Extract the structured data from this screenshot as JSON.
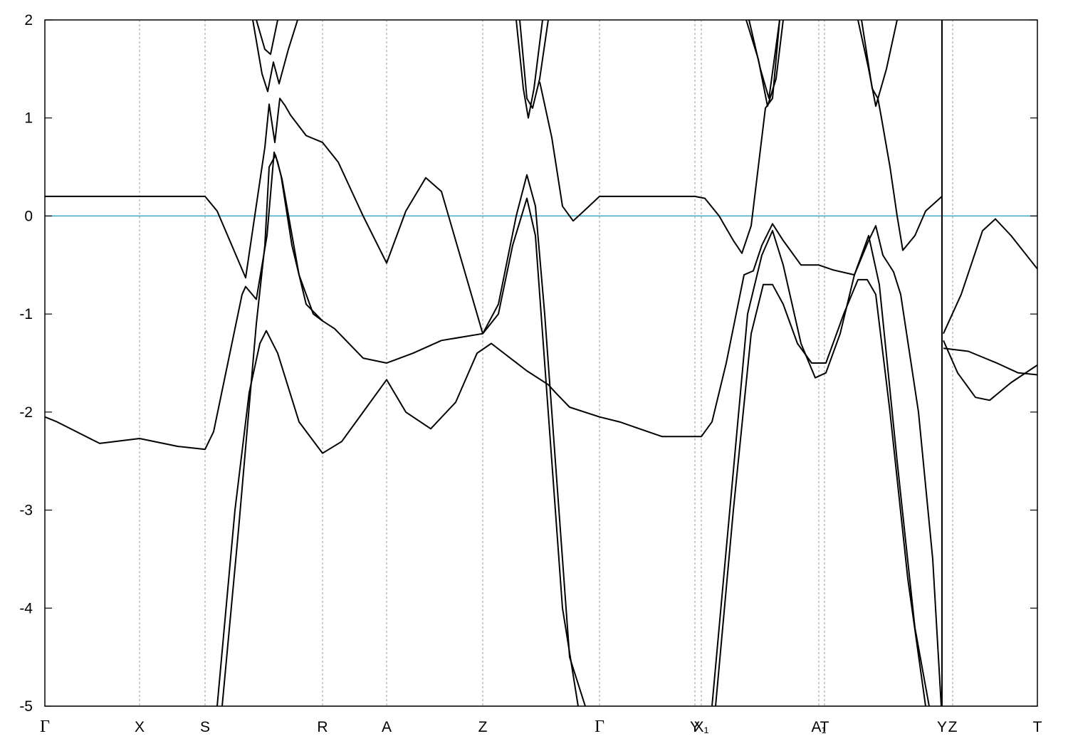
{
  "chart_data": {
    "type": "line",
    "xlim": [
      63,
      1457
    ],
    "ylim": [
      -5,
      2
    ],
    "yticks": [
      -5,
      -4,
      -3,
      -2,
      -1,
      0,
      1,
      2
    ],
    "xticks": [
      {
        "value": 63,
        "label": "Γ"
      },
      {
        "value": 196,
        "label": "X"
      },
      {
        "value": 288,
        "label": "S"
      },
      {
        "value": 453,
        "label": "R"
      },
      {
        "value": 543,
        "label": "A"
      },
      {
        "value": 678,
        "label": "Z"
      },
      {
        "value": 842,
        "label": "Γ"
      },
      {
        "value": 976,
        "label": "Y"
      },
      {
        "value": 985,
        "label": "X₁"
      },
      {
        "value": 1150,
        "label": "A₁"
      },
      {
        "value": 1158,
        "label": "T"
      },
      {
        "value": 1323,
        "label": "Y"
      },
      {
        "value": 1338,
        "label": "Z"
      },
      {
        "value": 1457,
        "label": "T"
      }
    ],
    "grid": true,
    "hline": {
      "value": 0,
      "color": "#3fa9c0"
    },
    "series": [
      {
        "color": "#000000",
        "x": [
          63,
          196,
          288,
          305,
          345,
          372,
          378,
          386,
          393,
          400,
          408,
          430,
          453,
          475,
          510,
          543,
          570,
          598,
          620,
          650,
          678,
          700,
          725,
          740,
          752,
          765,
          780,
          800,
          822
        ],
        "values": [
          0.2,
          0.2,
          0.2,
          0.05,
          -0.63,
          0.7,
          1.14,
          0.75,
          1.2,
          1.13,
          1.03,
          0.82,
          0.75,
          0.55,
          0,
          -0.48,
          0.05,
          0.39,
          0.25,
          -0.5,
          -1.2,
          -0.9,
          0,
          0.42,
          0.1,
          -1,
          -2.5,
          -4.5,
          -5
        ]
      },
      {
        "color": "#000000",
        "x": [
          63,
          80,
          140,
          196,
          250,
          288,
          300,
          320,
          340,
          345,
          360,
          375,
          385,
          390,
          395,
          410,
          430,
          453,
          470,
          510,
          543,
          580,
          620,
          678,
          700,
          720,
          740,
          752,
          770,
          790,
          812
        ],
        "values": [
          -2.05,
          -2.1,
          -2.32,
          -2.27,
          -2.35,
          -2.38,
          -2.2,
          -1.5,
          -0.8,
          -0.72,
          -0.85,
          -0.2,
          0.65,
          0.55,
          0.4,
          -0.3,
          -0.9,
          -1.07,
          -1.15,
          -1.45,
          -1.5,
          -1.4,
          -1.27,
          -1.2,
          -1,
          -0.3,
          0.18,
          -0.2,
          -2,
          -4,
          -5
        ]
      },
      {
        "color": "#000000",
        "x": [
          312,
          335,
          360,
          372,
          378,
          387,
          396,
          420,
          440,
          453
        ],
        "values": [
          -5,
          -3.2,
          -1.1,
          -0.3,
          0.5,
          0.62,
          0.38,
          -0.6,
          -1,
          -1.07
        ]
      },
      {
        "color": "#000000",
        "x": [
          305,
          330,
          350,
          365,
          374,
          390,
          420,
          453,
          480,
          520,
          543,
          570,
          605,
          640,
          670,
          690,
          740,
          770,
          780,
          800,
          842,
          870,
          930,
          985,
          1000,
          1020,
          1045,
          1058,
          1070,
          1085,
          1100,
          1125,
          1150,
          1170,
          1200,
          1220,
          1230,
          1240,
          1255,
          1265,
          1290,
          1310,
          1322
        ],
        "values": [
          -5,
          -3,
          -1.8,
          -1.3,
          -1.17,
          -1.4,
          -2.1,
          -2.42,
          -2.3,
          -1.9,
          -1.67,
          -2,
          -2.17,
          -1.9,
          -1.4,
          -1.3,
          -1.58,
          -1.72,
          -1.8,
          -1.95,
          -2.05,
          -2.1,
          -2.25,
          -2.25,
          -2.1,
          -1.5,
          -0.6,
          -0.56,
          -0.3,
          -0.08,
          -0.25,
          -0.5,
          -0.5,
          -0.55,
          -0.6,
          -0.25,
          -0.1,
          -0.4,
          -0.57,
          -0.8,
          -2,
          -3.5,
          -5
        ]
      },
      {
        "color": "#000000",
        "x": [
          360,
          372,
          380,
          390
        ],
        "values": [
          2,
          1.7,
          1.65,
          2
        ]
      },
      {
        "color": "#000000",
        "x": [
          355,
          368,
          376,
          384,
          392,
          405,
          418
        ],
        "values": [
          2,
          1.45,
          1.27,
          1.57,
          1.35,
          1.7,
          2
        ]
      },
      {
        "color": "#000000",
        "x": [
          725,
          735,
          742,
          750,
          762
        ],
        "values": [
          2,
          1.3,
          1,
          1.3,
          2
        ]
      },
      {
        "color": "#000000",
        "x": [
          730,
          740,
          748,
          758,
          770
        ],
        "values": [
          2,
          1.2,
          1.1,
          1.4,
          2
        ]
      },
      {
        "color": "#000000",
        "x": [
          758,
          775,
          790,
          805,
          820,
          842,
          976,
          990,
          1010,
          1030,
          1042,
          1055,
          1070,
          1075,
          1085,
          1095
        ],
        "values": [
          1.37,
          0.8,
          0.1,
          -0.05,
          0.05,
          0.2,
          0.2,
          0.18,
          0,
          -0.25,
          -0.38,
          -0.1,
          0.8,
          1.1,
          1.2,
          2
        ]
      },
      {
        "color": "#000000",
        "x": [
          1048,
          1065,
          1078,
          1090,
          1100
        ],
        "values": [
          2,
          1.6,
          1.12,
          1.4,
          2
        ]
      },
      {
        "color": "#000000",
        "x": [
          1052,
          1068,
          1080,
          1095
        ],
        "values": [
          2,
          1.5,
          1.2,
          2
        ]
      },
      {
        "color": "#000000",
        "x": [
          1205,
          1220,
          1230,
          1245,
          1260
        ],
        "values": [
          2,
          1.5,
          1.12,
          1.5,
          2
        ]
      },
      {
        "color": "#000000",
        "x": [
          1210,
          1225,
          1233,
          1238,
          1250,
          1260,
          1268,
          1285,
          1300,
          1323
        ],
        "values": [
          2,
          1.3,
          1.2,
          1,
          0.5,
          0,
          -0.35,
          -0.2,
          0.05,
          0.2
        ]
      },
      {
        "color": "#000000",
        "x": [
          1005,
          1030,
          1055,
          1072,
          1085,
          1100,
          1120,
          1140,
          1160,
          1185,
          1205,
          1218,
          1230,
          1250,
          1275,
          1300
        ],
        "values": [
          -5,
          -3,
          -1.2,
          -0.7,
          -0.7,
          -0.9,
          -1.3,
          -1.5,
          -1.5,
          -1,
          -0.65,
          -0.65,
          -0.8,
          -2,
          -3.7,
          -5
        ]
      },
      {
        "color": "#000000",
        "x": [
          1000,
          1025,
          1050,
          1070,
          1085,
          1100,
          1125,
          1145,
          1160,
          1180,
          1200,
          1220,
          1235,
          1260,
          1285,
          1305
        ],
        "values": [
          -5,
          -3,
          -1,
          -0.4,
          -0.15,
          -0.5,
          -1.3,
          -1.65,
          -1.6,
          -1.2,
          -0.6,
          -0.2,
          -0.7,
          -2.5,
          -4.2,
          -5
        ]
      },
      {
        "color": "#000000",
        "x": [
          1325,
          1350,
          1380,
          1398,
          1420,
          1457
        ],
        "values": [
          -1.2,
          -0.8,
          -0.15,
          -0.03,
          -0.2,
          -0.54
        ]
      },
      {
        "color": "#000000",
        "x": [
          1325,
          1345,
          1370,
          1390,
          1420,
          1457
        ],
        "values": [
          -1.27,
          -1.6,
          -1.85,
          -1.88,
          -1.7,
          -1.52
        ]
      },
      {
        "color": "#000000",
        "x": [
          1325,
          1360,
          1400,
          1430,
          1457
        ],
        "values": [
          -1.35,
          -1.38,
          -1.5,
          -1.6,
          -1.62
        ]
      }
    ]
  }
}
